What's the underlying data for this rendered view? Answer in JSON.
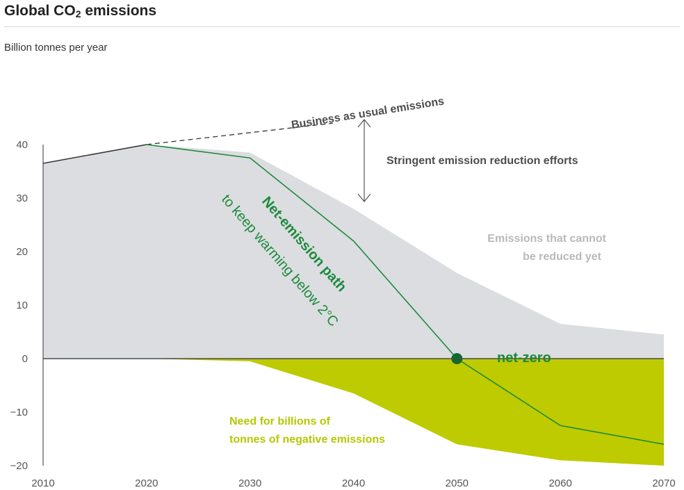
{
  "header": {
    "title_main": "Global CO",
    "title_sub": "2",
    "title_end": " emissions",
    "unit_label": "Billion tonnes per year"
  },
  "chart_data": {
    "type": "area",
    "x_ticks": [
      "2010",
      "2020",
      "2030",
      "2040",
      "2050",
      "2060",
      "2070"
    ],
    "y_ticks": [
      "40",
      "30",
      "20",
      "10",
      "0",
      "−10",
      "−20"
    ],
    "xlim": [
      2010,
      2070
    ],
    "ylim": [
      -20,
      40
    ],
    "grid": false,
    "series": [
      {
        "name": "Emissions that cannot be reduced yet",
        "x": [
          2010,
          2020,
          2030,
          2040,
          2050,
          2060,
          2070
        ],
        "y": [
          36.5,
          40,
          38.5,
          28,
          16,
          6.5,
          4.5
        ]
      },
      {
        "name": "Need for billions of tonnes of negative emissions",
        "x": [
          2010,
          2020,
          2030,
          2040,
          2050,
          2060,
          2070
        ],
        "y": [
          0,
          0,
          -0.5,
          -6.5,
          -16,
          -19,
          -20
        ]
      },
      {
        "name": "Net-emission path",
        "x": [
          2010,
          2020,
          2030,
          2040,
          2050,
          2060,
          2070
        ],
        "y": [
          36.5,
          40,
          37.5,
          22,
          0,
          -12.5,
          -16
        ]
      },
      {
        "name": "Business as usual emissions",
        "x": [
          2020,
          2038
        ],
        "y": [
          40,
          44
        ]
      }
    ],
    "net_zero_year": 2050,
    "annotations": {
      "business_as_usual": "Business as usual emissions",
      "stringent": "Stringent emission reduction efforts",
      "cannot_reduce_1": "Emissions that cannot",
      "cannot_reduce_2": "be reduced yet",
      "net_path": "Net-emission path",
      "net_path_sub": "to keep warming below 2°C",
      "net_zero": "net-zero",
      "negative_1": "Need for billions of",
      "negative_2": "tonnes of negative emissions"
    },
    "colors": {
      "gray_area": "#dcdde0",
      "yellow_area": "#bdcb00",
      "net_path": "#1c8a3c",
      "axis": "#555555",
      "bau_line": "#333333"
    }
  }
}
